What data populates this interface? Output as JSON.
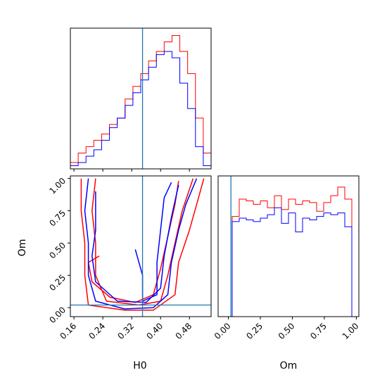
{
  "chart_data": [
    {
      "type": "histogram",
      "panel": "H0 marginal",
      "xlim": [
        0.15,
        0.54
      ],
      "truth": 0.35,
      "bins": 18,
      "series": [
        {
          "color": "#ff0000",
          "values": [
            0.02,
            0.05,
            0.07,
            0.09,
            0.11,
            0.14,
            0.16,
            0.22,
            0.26,
            0.3,
            0.34,
            0.37,
            0.4,
            0.42,
            0.37,
            0.3,
            0.16,
            0.05
          ]
        },
        {
          "color": "#0000ff",
          "values": [
            0.01,
            0.02,
            0.04,
            0.06,
            0.09,
            0.13,
            0.16,
            0.2,
            0.24,
            0.28,
            0.32,
            0.36,
            0.37,
            0.35,
            0.27,
            0.19,
            0.07,
            0.01
          ]
        }
      ]
    },
    {
      "type": "histogram",
      "panel": "Om marginal",
      "xlim": [
        -0.08,
        1.02
      ],
      "truth": 0.02,
      "bins": 20,
      "series": [
        {
          "color": "#ff0000",
          "values": [
            0.0,
            0.0,
            0.58,
            0.68,
            0.67,
            0.65,
            0.67,
            0.63,
            0.7,
            0.62,
            0.68,
            0.65,
            0.67,
            0.66,
            0.61,
            0.66,
            0.7,
            0.75,
            0.68,
            0.0
          ]
        },
        {
          "color": "#0000ff",
          "values": [
            0.0,
            0.0,
            0.55,
            0.57,
            0.56,
            0.55,
            0.57,
            0.59,
            0.63,
            0.54,
            0.6,
            0.49,
            0.57,
            0.56,
            0.58,
            0.6,
            0.59,
            0.6,
            0.52,
            0.0
          ]
        }
      ]
    },
    {
      "type": "contour",
      "panel": "H0 vs Om",
      "xlim": [
        0.15,
        0.54
      ],
      "ylim": [
        -0.07,
        1.02
      ],
      "truth": {
        "x": 0.35,
        "y": 0.02
      },
      "series": [
        {
          "color": "#ff0000",
          "contours": [
            [
              [
                0.18,
                1.0
              ],
              [
                0.18,
                0.75
              ],
              [
                0.19,
                0.5
              ],
              [
                0.19,
                0.25
              ],
              [
                0.2,
                0.02
              ],
              [
                0.3,
                -0.02
              ],
              [
                0.38,
                -0.02
              ],
              [
                0.44,
                0.1
              ],
              [
                0.45,
                0.35
              ],
              [
                0.48,
                0.6
              ],
              [
                0.5,
                0.8
              ],
              [
                0.52,
                1.0
              ]
            ],
            [
              [
                0.22,
                1.0
              ],
              [
                0.21,
                0.75
              ],
              [
                0.22,
                0.5
              ],
              [
                0.22,
                0.25
              ],
              [
                0.25,
                0.05
              ],
              [
                0.34,
                0.02
              ],
              [
                0.4,
                0.05
              ],
              [
                0.42,
                0.25
              ],
              [
                0.44,
                0.5
              ],
              [
                0.46,
                0.75
              ],
              [
                0.49,
                1.0
              ]
            ],
            [
              [
                0.23,
                0.4
              ],
              [
                0.2,
                0.35
              ],
              [
                0.21,
                0.2
              ],
              [
                0.26,
                0.08
              ],
              [
                0.33,
                0.04
              ],
              [
                0.38,
                0.1
              ],
              [
                0.4,
                0.3
              ],
              [
                0.42,
                0.55
              ],
              [
                0.44,
                0.8
              ],
              [
                0.45,
                0.98
              ]
            ]
          ]
        },
        {
          "color": "#0000ff",
          "contours": [
            [
              [
                0.2,
                1.0
              ],
              [
                0.19,
                0.75
              ],
              [
                0.2,
                0.5
              ],
              [
                0.2,
                0.25
              ],
              [
                0.22,
                0.05
              ],
              [
                0.3,
                -0.01
              ],
              [
                0.38,
                0.0
              ],
              [
                0.42,
                0.1
              ],
              [
                0.43,
                0.35
              ],
              [
                0.45,
                0.6
              ],
              [
                0.47,
                0.8
              ],
              [
                0.5,
                1.0
              ]
            ],
            [
              [
                0.22,
                0.9
              ],
              [
                0.22,
                0.6
              ],
              [
                0.21,
                0.4
              ],
              [
                0.22,
                0.2
              ],
              [
                0.28,
                0.05
              ],
              [
                0.36,
                0.04
              ],
              [
                0.4,
                0.15
              ],
              [
                0.41,
                0.4
              ],
              [
                0.43,
                0.7
              ],
              [
                0.45,
                0.95
              ]
            ],
            [
              [
                0.33,
                0.45
              ],
              [
                0.35,
                0.25
              ],
              [
                0.35,
                0.05
              ],
              [
                0.39,
                0.1
              ],
              [
                0.39,
                0.35
              ],
              [
                0.4,
                0.6
              ],
              [
                0.41,
                0.85
              ],
              [
                0.43,
                0.97
              ]
            ]
          ]
        }
      ]
    }
  ],
  "axes": {
    "h0_ticks": [
      "0.16",
      "0.24",
      "0.32",
      "0.40",
      "0.48"
    ],
    "om_ticks": [
      "0.00",
      "0.25",
      "0.50",
      "0.75",
      "1.00"
    ],
    "xlabel_left": "H0",
    "xlabel_right": "Om",
    "ylabel_left": "Om"
  }
}
